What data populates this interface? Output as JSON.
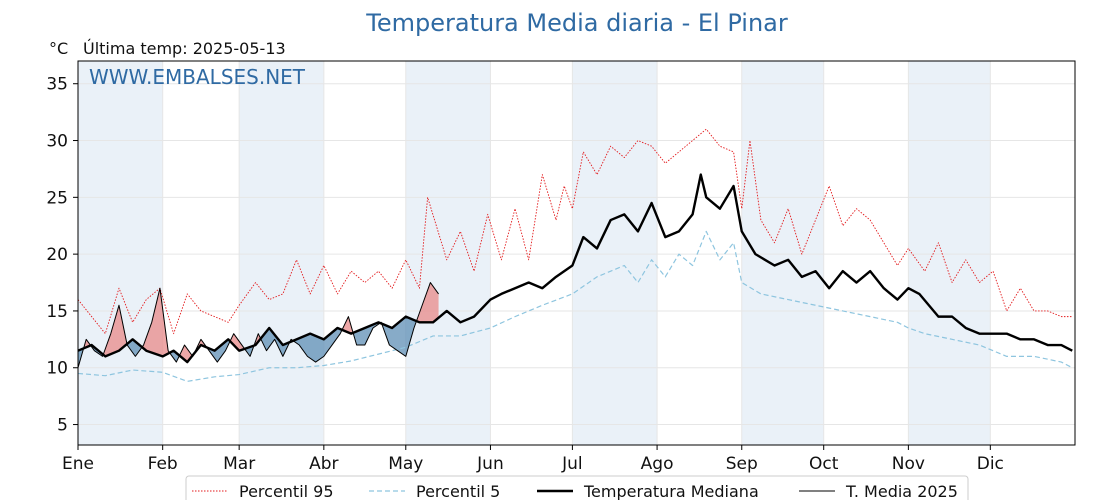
{
  "chart_data": {
    "type": "line",
    "title": "Temperatura Media diaria - El Pinar",
    "unit": "°C",
    "last_temp_label": "Última temp: 2025-05-13",
    "watermark": "WWW.EMBALSES.NET",
    "ylim": [
      3.2,
      37
    ],
    "yticks": [
      5,
      10,
      15,
      20,
      25,
      30,
      35
    ],
    "month_labels": [
      "Ene",
      "Feb",
      "Mar",
      "Abr",
      "May",
      "Jun",
      "Jul",
      "Ago",
      "Sep",
      "Oct",
      "Nov",
      "Dic"
    ],
    "month_start_days": [
      0,
      31,
      59,
      90,
      120,
      151,
      181,
      212,
      243,
      273,
      304,
      334
    ],
    "days_in_year": 365,
    "grid": true,
    "legend_placement": "bottom",
    "colors": {
      "p95": "#e31a1c",
      "p5": "#8ec5df",
      "median": "#000000",
      "current": "#000000",
      "above_fill": "#e88a8a",
      "below_fill": "#5f8fb5",
      "band": "#eaf1f8",
      "title": "#2f6aa3"
    },
    "series": [
      {
        "name": "Percentil 95",
        "key": "p95",
        "style": "dotted",
        "x": [
          0,
          10,
          15,
          20,
          25,
          30,
          35,
          40,
          45,
          55,
          59,
          65,
          70,
          75,
          80,
          85,
          90,
          95,
          100,
          105,
          110,
          115,
          120,
          125,
          128,
          135,
          140,
          145,
          150,
          155,
          160,
          165,
          170,
          175,
          178,
          181,
          185,
          190,
          195,
          200,
          205,
          210,
          215,
          220,
          225,
          230,
          235,
          240,
          243,
          246,
          250,
          255,
          260,
          265,
          270,
          275,
          280,
          285,
          290,
          295,
          300,
          304,
          310,
          315,
          320,
          325,
          330,
          335,
          340,
          345,
          350,
          355,
          360,
          364
        ],
        "values": [
          16,
          13,
          17,
          14,
          16,
          17,
          13,
          16.5,
          15,
          14,
          15.5,
          17.5,
          16,
          16.5,
          19.5,
          16.5,
          19,
          16.5,
          18.5,
          17.5,
          18.5,
          17,
          19.5,
          17,
          25,
          19.5,
          22,
          18.5,
          23.5,
          19.5,
          24,
          19.5,
          27,
          23,
          26,
          24,
          29,
          27,
          29.5,
          28.5,
          30,
          29.5,
          28,
          29,
          30,
          31,
          29.5,
          29,
          24,
          30,
          23,
          21,
          24,
          20,
          23,
          26,
          22.5,
          24,
          23,
          21,
          19,
          20.5,
          18.5,
          21,
          17.5,
          19.5,
          17.5,
          18.5,
          15,
          17,
          15,
          15,
          14.5,
          14.5
        ]
      },
      {
        "name": "Percentil 5",
        "key": "p5",
        "style": "dashed",
        "x": [
          0,
          10,
          20,
          31,
          40,
          50,
          59,
          70,
          80,
          90,
          100,
          110,
          120,
          130,
          140,
          151,
          160,
          170,
          181,
          190,
          200,
          205,
          210,
          215,
          220,
          225,
          230,
          235,
          240,
          243,
          250,
          260,
          270,
          280,
          290,
          300,
          304,
          310,
          320,
          330,
          340,
          350,
          360,
          364
        ],
        "values": [
          9.5,
          9.3,
          9.8,
          9.6,
          8.8,
          9.2,
          9.4,
          10,
          10,
          10.2,
          10.6,
          11.2,
          11.8,
          12.8,
          12.8,
          13.5,
          14.5,
          15.5,
          16.5,
          18,
          19,
          17.5,
          19.5,
          18,
          20,
          19,
          22,
          19.5,
          21,
          17.5,
          16.5,
          16,
          15.5,
          15,
          14.5,
          14,
          13.5,
          13,
          12.5,
          12,
          11,
          11,
          10.5,
          10
        ]
      },
      {
        "name": "Temperatura Mediana",
        "key": "median",
        "style": "solid-thick",
        "x": [
          0,
          5,
          10,
          15,
          20,
          25,
          31,
          35,
          40,
          45,
          50,
          55,
          59,
          65,
          70,
          75,
          80,
          85,
          90,
          95,
          100,
          105,
          110,
          115,
          120,
          125,
          130,
          135,
          140,
          145,
          151,
          155,
          160,
          165,
          170,
          175,
          181,
          185,
          190,
          195,
          200,
          205,
          210,
          215,
          220,
          225,
          228,
          230,
          235,
          240,
          243,
          248,
          255,
          260,
          265,
          270,
          275,
          280,
          285,
          290,
          295,
          300,
          304,
          308,
          315,
          320,
          325,
          330,
          335,
          340,
          345,
          350,
          355,
          360,
          364
        ],
        "values": [
          11.5,
          12,
          11,
          11.5,
          12.5,
          11.5,
          11,
          11.5,
          10.5,
          12,
          11.5,
          12.5,
          11.5,
          12,
          13.5,
          12,
          12.5,
          13,
          12.5,
          13.5,
          13,
          13.5,
          14,
          13.5,
          14.5,
          14,
          14,
          15,
          14,
          14.5,
          16,
          16.5,
          17,
          17.5,
          17,
          18,
          19,
          21.5,
          20.5,
          23,
          23.5,
          22,
          24.5,
          21.5,
          22,
          23.5,
          27,
          25,
          24,
          26,
          22,
          20,
          19,
          19.5,
          18,
          18.5,
          17,
          18.5,
          17.5,
          18.5,
          17,
          16,
          17,
          16.5,
          14.5,
          14.5,
          13.5,
          13,
          13,
          13,
          12.5,
          12.5,
          12,
          12,
          11.5
        ]
      },
      {
        "name": "T. Media 2025",
        "key": "current",
        "style": "solid-thin",
        "x": [
          0,
          3,
          6,
          9,
          12,
          15,
          18,
          21,
          24,
          27,
          30,
          33,
          36,
          39,
          42,
          45,
          48,
          51,
          54,
          57,
          60,
          63,
          66,
          69,
          72,
          75,
          78,
          81,
          84,
          87,
          90,
          93,
          96,
          99,
          102,
          105,
          108,
          111,
          114,
          117,
          120,
          123,
          126,
          129,
          132
        ],
        "values": [
          10,
          12.5,
          11.5,
          11,
          13,
          15.5,
          12,
          11,
          12,
          14,
          17,
          11.5,
          10.5,
          12,
          11,
          12.5,
          11.5,
          10.5,
          11.5,
          13,
          12,
          11,
          13,
          11.5,
          12.5,
          11,
          12.5,
          12,
          11,
          10.5,
          11,
          12,
          13,
          14.5,
          12,
          12,
          13.5,
          14,
          12,
          11.5,
          11,
          13.5,
          15.5,
          17.5,
          16.5
        ]
      }
    ]
  },
  "legend": [
    {
      "label": "Percentil 95",
      "key": "p95"
    },
    {
      "label": "Percentil 5",
      "key": "p5"
    },
    {
      "label": "Temperatura Mediana",
      "key": "median"
    },
    {
      "label": "T. Media 2025",
      "key": "current"
    }
  ]
}
